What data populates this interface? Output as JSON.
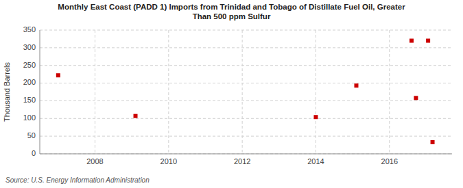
{
  "chart_data": {
    "type": "scatter",
    "title": "Monthly East Coast (PADD 1) Imports from Trinidad and Tobago of Distillate Fuel Oil, Greater\nThan 500 ppm Sulfur",
    "ylabel": "Thousand Barrels",
    "source": "Source: U.S. Energy Information Administration",
    "x": [
      2007.0,
      2009.1,
      2014.0,
      2015.1,
      2016.6,
      2016.72,
      2017.05,
      2017.17
    ],
    "values": [
      222,
      107,
      104,
      193,
      320,
      158,
      320,
      33
    ],
    "color": "#cc0000",
    "marker": "square",
    "xlim": [
      2006.5,
      2017.7
    ],
    "ylim": [
      0,
      350
    ],
    "xticks": [
      2008,
      2010,
      2012,
      2014,
      2016
    ],
    "yticks": [
      0,
      50,
      100,
      150,
      200,
      250,
      300,
      350
    ],
    "grid": true
  }
}
